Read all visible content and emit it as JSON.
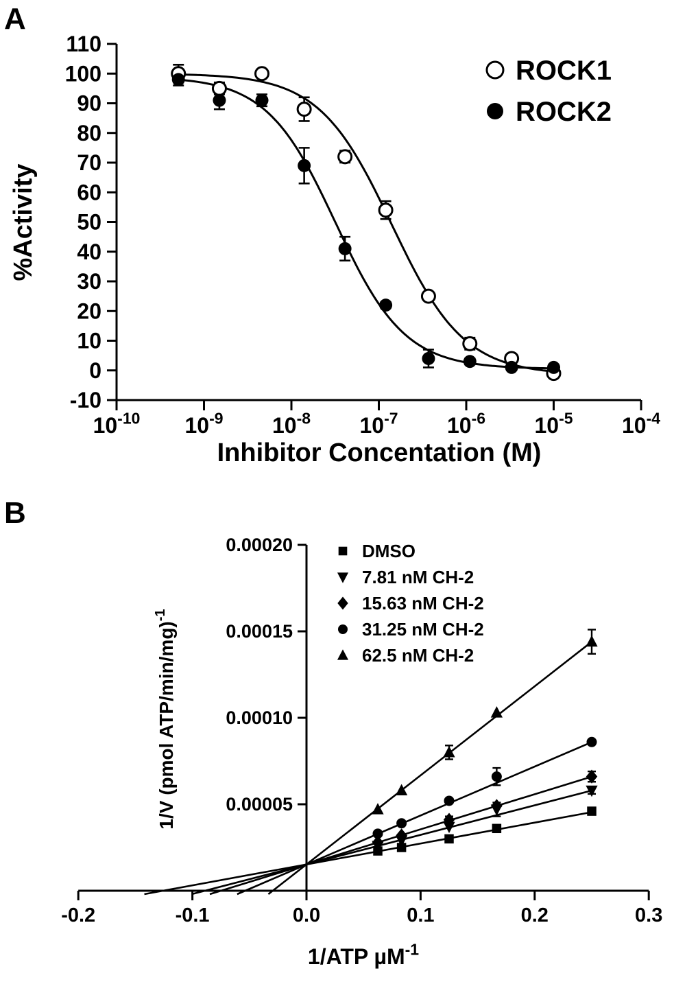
{
  "figure": {
    "panels": [
      {
        "label": "A"
      },
      {
        "label": "B"
      }
    ]
  },
  "chart_data": [
    {
      "type": "scatter",
      "panel": "A",
      "title": "",
      "xlabel": "Inhibitor Concentation (M)",
      "ylabel": "%Activity",
      "x_scale": "log10",
      "xlim_log": [
        -10,
        -4
      ],
      "ylim": [
        -10,
        110
      ],
      "grid": false,
      "legend_position": "top-right",
      "y_ticks": [
        -10,
        0,
        10,
        20,
        30,
        40,
        50,
        60,
        70,
        80,
        90,
        100,
        110
      ],
      "x_ticks": [
        {
          "log": -10,
          "label": "10^-10"
        },
        {
          "log": -9,
          "label": "10^-9"
        },
        {
          "log": -8,
          "label": "10^-8"
        },
        {
          "log": -7,
          "label": "10^-7"
        },
        {
          "log": -6,
          "label": "10^-6"
        },
        {
          "log": -5,
          "label": "10^-5"
        },
        {
          "log": -4,
          "label": "10^-4"
        }
      ],
      "series": [
        {
          "name": "ROCK1",
          "marker": "open-circle",
          "x": [
            5.1e-10,
            1.5e-09,
            4.6e-09,
            1.4e-08,
            4.1e-08,
            1.2e-07,
            3.7e-07,
            1.1e-06,
            3.3e-06,
            1e-05
          ],
          "y": [
            100,
            95,
            100,
            88,
            72,
            54,
            25,
            9,
            4,
            -1
          ],
          "yerr": [
            3,
            2,
            0,
            4,
            2,
            3,
            1,
            2,
            1,
            1
          ],
          "fit": {
            "top": 100,
            "bottom": -1.5,
            "ic50": 1.4e-07,
            "hill": 1.05
          }
        },
        {
          "name": "ROCK2",
          "marker": "filled-circle",
          "x": [
            5.1e-10,
            1.5e-09,
            4.6e-09,
            1.4e-08,
            4.1e-08,
            1.2e-07,
            3.7e-07,
            1.1e-06,
            3.3e-06,
            1e-05
          ],
          "y": [
            98,
            91,
            91,
            69,
            41,
            22,
            4,
            3,
            1,
            1
          ],
          "yerr": [
            2,
            3,
            2,
            6,
            4,
            1,
            3,
            1,
            1,
            1
          ],
          "fit": {
            "top": 99,
            "bottom": 0.5,
            "ic50": 3.2e-08,
            "hill": 1.1
          }
        }
      ]
    },
    {
      "type": "scatter",
      "panel": "B",
      "title": "",
      "xlabel": "1/ATP µM^-1",
      "ylabel": "1/V (pmol ATP/min/mg)^-1",
      "xlim": [
        -0.2,
        0.3
      ],
      "ylim": [
        0,
        0.0002
      ],
      "grid": false,
      "legend_position": "top-left-inside",
      "y_ticks": [
        {
          "v": 5e-05,
          "label": "0.00005"
        },
        {
          "v": 0.0001,
          "label": "0.00010"
        },
        {
          "v": 0.00015,
          "label": "0.00015"
        },
        {
          "v": 0.0002,
          "label": "0.00020"
        }
      ],
      "x_ticks": [
        {
          "v": -0.2,
          "label": "-0.2"
        },
        {
          "v": -0.1,
          "label": "-0.1"
        },
        {
          "v": 0.0,
          "label": "0.0"
        },
        {
          "v": 0.1,
          "label": "0.1"
        },
        {
          "v": 0.2,
          "label": "0.2"
        },
        {
          "v": 0.3,
          "label": "0.3"
        }
      ],
      "series": [
        {
          "name": "DMSO",
          "marker": "filled-square",
          "x": [
            0.0625,
            0.0833,
            0.125,
            0.1667,
            0.25
          ],
          "y": [
            2.3e-05,
            2.5e-05,
            3e-05,
            3.6e-05,
            4.6e-05
          ],
          "yerr": [
            0,
            0,
            0,
            0,
            2e-06
          ],
          "fit": {
            "slope": 0.000121,
            "intercept": 1.52e-05
          }
        },
        {
          "name": "7.81 nM CH-2",
          "marker": "filled-triangle-down",
          "x": [
            0.0625,
            0.0833,
            0.125,
            0.1667,
            0.25
          ],
          "y": [
            2.6e-05,
            2.9e-05,
            3.7e-05,
            4.7e-05,
            5.8e-05
          ],
          "yerr": [
            0,
            0,
            0,
            4e-06,
            2e-06
          ],
          "fit": {
            "slope": 0.000171,
            "intercept": 1.52e-05
          }
        },
        {
          "name": "15.63 nM CH-2",
          "marker": "filled-diamond",
          "x": [
            0.0625,
            0.0833,
            0.125,
            0.1667,
            0.25
          ],
          "y": [
            2.8e-05,
            3.2e-05,
            4.1e-05,
            4.9e-05,
            6.6e-05
          ],
          "yerr": [
            0,
            0,
            2e-06,
            0,
            3e-06
          ],
          "fit": {
            "slope": 0.000203,
            "intercept": 1.52e-05
          }
        },
        {
          "name": "31.25 nM CH-2",
          "marker": "filled-circle",
          "x": [
            0.0625,
            0.0833,
            0.125,
            0.1667,
            0.25
          ],
          "y": [
            3.3e-05,
            3.9e-05,
            5.2e-05,
            6.6e-05,
            8.6e-05
          ],
          "yerr": [
            0,
            0,
            0,
            5e-06,
            0
          ],
          "fit": {
            "slope": 0.000283,
            "intercept": 1.52e-05
          }
        },
        {
          "name": "62.5 nM CH-2",
          "marker": "filled-triangle-up",
          "x": [
            0.0625,
            0.0833,
            0.125,
            0.1667,
            0.25
          ],
          "y": [
            4.7e-05,
            5.8e-05,
            8e-05,
            0.000103,
            0.000144
          ],
          "yerr": [
            0,
            0,
            4e-06,
            0,
            7e-06
          ],
          "fit": {
            "slope": 0.000515,
            "intercept": 1.52e-05
          }
        }
      ]
    }
  ]
}
